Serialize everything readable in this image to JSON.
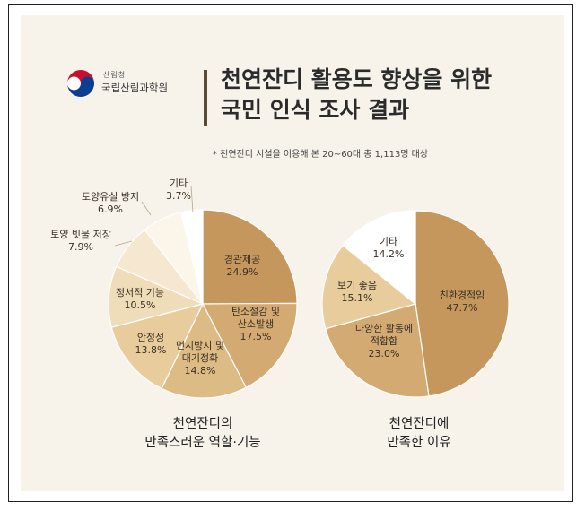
{
  "header": {
    "org_small": "산림청",
    "org_name": "국립산림과학원",
    "title_line1": "천연잔디 활용도 향상을 위한",
    "title_line2": "국민 인식 조사 결과",
    "note": "*  천연잔디 시설을 이용해 본 20~60대 총 1,113명 대상"
  },
  "colors": {
    "panel_bg": "#f7f3ea",
    "left_slices": [
      "#c5975d",
      "#d2aa72",
      "#ddbb85",
      "#e8cc9c",
      "#efdcb8",
      "#f6e8d0",
      "#fbf5ea",
      "#ffffff"
    ],
    "right_slices": [
      "#c5975d",
      "#d2aa72",
      "#e8cc9c",
      "#ffffff"
    ]
  },
  "chart_data": [
    {
      "type": "pie",
      "title": "천연잔디의 만족스러운 역할·기능",
      "title_line1": "천연잔디의",
      "title_line2": "만족스러운 역할·기능",
      "slices": [
        {
          "label": "경관제공",
          "value": 24.9,
          "value_label": "24.9%"
        },
        {
          "label": "탄소절감 및 산소발생",
          "value": 17.5,
          "value_label": "17.5%"
        },
        {
          "label": "먼지방지 및 대기정화",
          "value": 14.8,
          "value_label": "14.8%"
        },
        {
          "label": "안정성",
          "value": 13.8,
          "value_label": "13.8%"
        },
        {
          "label": "정서적 기능",
          "value": 10.5,
          "value_label": "10.5%"
        },
        {
          "label": "토양 빗물 저장",
          "value": 7.9,
          "value_label": "7.9%"
        },
        {
          "label": "토양유실 방지",
          "value": 6.9,
          "value_label": "6.9%"
        },
        {
          "label": "기타",
          "value": 3.7,
          "value_label": "3.7%"
        }
      ]
    },
    {
      "type": "pie",
      "title": "천연잔디에 만족한 이유",
      "title_line1": "천연잔디에",
      "title_line2": "만족한 이유",
      "slices": [
        {
          "label": "친환경적임",
          "value": 47.7,
          "value_label": "47.7%"
        },
        {
          "label": "다양한 활동에 적합함",
          "value": 23.0,
          "value_label": "23.0%"
        },
        {
          "label": "보기 좋음",
          "value": 15.1,
          "value_label": "15.1%"
        },
        {
          "label": "기타",
          "value": 14.2,
          "value_label": "14.2%"
        }
      ]
    }
  ]
}
